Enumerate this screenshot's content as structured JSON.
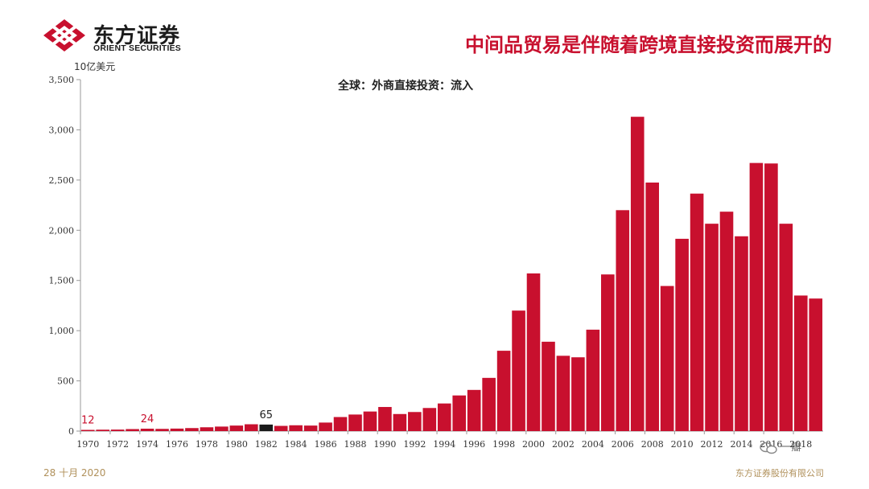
{
  "header": {
    "logo_cn": "东方证券",
    "logo_en": "ORIENT SECURITIES",
    "headline": "中间品贸易是伴随着跨境直接投资而展开的"
  },
  "footer": {
    "date": "28 十月 2020",
    "company": "东方证券股份有限公司"
  },
  "watermark": "一瓣",
  "colors": {
    "bar": "#c8102e",
    "highlight_bar": "#1a1a1a",
    "brand": "#c8102e"
  },
  "chart_data": {
    "type": "bar",
    "title": "全球：外商直接投资：流入",
    "unit": "10亿美元",
    "years": [
      1970,
      1971,
      1972,
      1973,
      1974,
      1975,
      1976,
      1977,
      1978,
      1979,
      1980,
      1981,
      1982,
      1983,
      1984,
      1985,
      1986,
      1987,
      1988,
      1989,
      1990,
      1991,
      1992,
      1993,
      1994,
      1995,
      1996,
      1997,
      1998,
      1999,
      2000,
      2001,
      2002,
      2003,
      2004,
      2005,
      2006,
      2007,
      2008,
      2009,
      2010,
      2011,
      2012,
      2013,
      2014,
      2015,
      2016,
      2017,
      2018,
      2019
    ],
    "values": [
      12,
      14,
      15,
      20,
      24,
      22,
      25,
      30,
      38,
      45,
      55,
      68,
      65,
      52,
      58,
      55,
      85,
      140,
      165,
      195,
      240,
      170,
      190,
      230,
      275,
      355,
      410,
      530,
      800,
      1200,
      1570,
      890,
      750,
      735,
      1010,
      1560,
      2200,
      3130,
      2475,
      1445,
      1915,
      2365,
      2065,
      2185,
      1940,
      2670,
      2665,
      2065,
      1350,
      1320
    ],
    "x_tick_labels": [
      "1970",
      "1972",
      "1974",
      "1976",
      "1978",
      "1980",
      "1982",
      "1984",
      "1986",
      "1988",
      "1990",
      "1992",
      "1994",
      "1996",
      "1998",
      "2000",
      "2002",
      "2004",
      "2006",
      "2008",
      "2010",
      "2012",
      "2014",
      "2016",
      "2018"
    ],
    "y_tick_labels": [
      "0",
      "500",
      "1,000",
      "1,500",
      "2,000",
      "2,500",
      "3,000",
      "3,500"
    ],
    "ylim": [
      0,
      3500
    ],
    "highlight": {
      "year": 1982,
      "label": "65"
    },
    "data_labels": [
      {
        "year": 1970,
        "label": "12"
      },
      {
        "year": 1974,
        "label": "24"
      }
    ],
    "grid": false,
    "legend": "none"
  }
}
